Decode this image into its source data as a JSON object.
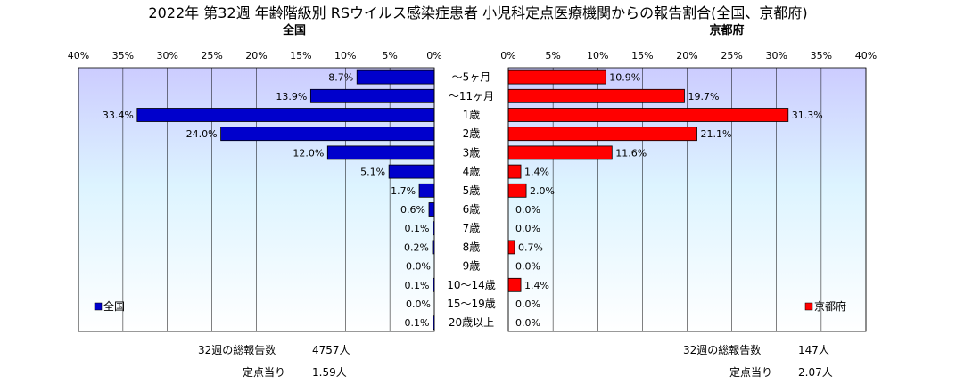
{
  "chart_data": {
    "type": "bar",
    "title": "2022年 第32週 年齢階級別 RSウイルス感染症患者 小児科定点医療機関からの報告割合(全国、京都府)",
    "categories": [
      "～5ヶ月",
      "～11ヶ月",
      "1歳",
      "2歳",
      "3歳",
      "4歳",
      "5歳",
      "6歳",
      "7歳",
      "8歳",
      "9歳",
      "10～14歳",
      "15～19歳",
      "20歳以上"
    ],
    "xlim": [
      0,
      40
    ],
    "ticks": [
      "0%",
      "5%",
      "10%",
      "15%",
      "20%",
      "25%",
      "30%",
      "35%",
      "40%"
    ],
    "unit": "%",
    "series": [
      {
        "name": "全国",
        "side": "left",
        "color": "#0000cc",
        "values": [
          8.7,
          13.9,
          33.4,
          24.0,
          12.0,
          5.1,
          1.7,
          0.6,
          0.1,
          0.2,
          0.0,
          0.1,
          0.0,
          0.1
        ],
        "labels": [
          "8.7%",
          "13.9%",
          "33.4%",
          "24.0%",
          "12.0%",
          "5.1%",
          "1.7%",
          "0.6%",
          "0.1%",
          "0.2%",
          "0.0%",
          "0.1%",
          "0.0%",
          "0.1%"
        ]
      },
      {
        "name": "京都府",
        "side": "right",
        "color": "#ff0000",
        "values": [
          10.9,
          19.7,
          31.3,
          21.1,
          11.6,
          1.4,
          2.0,
          0.0,
          0.0,
          0.7,
          0.0,
          1.4,
          0.0,
          0.0
        ],
        "labels": [
          "10.9%",
          "19.7%",
          "31.3%",
          "21.1%",
          "11.6%",
          "1.4%",
          "2.0%",
          "0.0%",
          "0.0%",
          "0.7%",
          "0.0%",
          "1.4%",
          "0.0%",
          "0.0%"
        ]
      }
    ],
    "grid": true,
    "legend_position": "bottom-left of each panel"
  },
  "panels": {
    "left_title": "全国",
    "right_title": "京都府",
    "left_legend": "全国",
    "right_legend": "京都府"
  },
  "footer": {
    "left": {
      "total_label": "32週の総報告数",
      "total_value": "4757人",
      "per_label": "定点当り",
      "per_value": "1.59人"
    },
    "right": {
      "total_label": "32週の総報告数",
      "total_value": "147人",
      "per_label": "定点当り",
      "per_value": "2.07人"
    }
  }
}
